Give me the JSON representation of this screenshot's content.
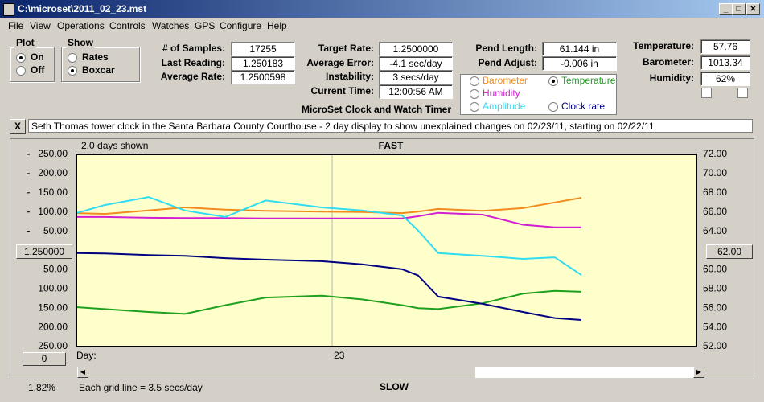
{
  "window": {
    "title": "C:\\microset\\2011_02_23.mst"
  },
  "menu": [
    "File",
    "View",
    "Operations",
    "Controls",
    "Watches",
    "GPS",
    "Configure",
    "Help"
  ],
  "plot_group": {
    "title": "Plot",
    "options": [
      "On",
      "Off"
    ],
    "selected": 0
  },
  "show_group": {
    "title": "Show",
    "options": [
      "Rates",
      "Boxcar"
    ],
    "selected": 1
  },
  "stats": [
    {
      "label": "# of Samples:",
      "value": "17255"
    },
    {
      "label": "Last Reading:",
      "value": "1.250183"
    },
    {
      "label": "Average Rate:",
      "value": "1.2500598"
    }
  ],
  "targets": [
    {
      "label": "Target Rate:",
      "value": "1.2500000"
    },
    {
      "label": "Average Error:",
      "value": "-4.1 sec/day"
    },
    {
      "label": "Instability:",
      "value": "3 secs/day"
    },
    {
      "label": "Current Time:",
      "value": "12:00:56 AM"
    }
  ],
  "pendulum": [
    {
      "label": "Pend Length:",
      "value": "61.144 in"
    },
    {
      "label": "Pend Adjust:",
      "value": "-0.006 in"
    }
  ],
  "environment": [
    {
      "label": "Temperature:",
      "value": "57.76"
    },
    {
      "label": "Barometer:",
      "value": "1013.34"
    },
    {
      "label": "Humidity:",
      "value": "62%"
    }
  ],
  "checkboxes": [
    false,
    false
  ],
  "app_name": "MicroSet Clock and Watch Timer",
  "selected_series": 1,
  "close_button": "X",
  "description": "Seth Thomas tower clock in the Santa Barbara County Courthouse - 2 day display to show unexplained changes on 02/23/11, starting on 02/22/11",
  "center_buttons": {
    "left": "1.250000",
    "right": "62.00"
  },
  "status": {
    "scale_button": "0",
    "percent": "1.82%",
    "grid_note": "Each grid line = 3.5 secs/day"
  },
  "chart_data": {
    "type": "line",
    "span_label": "2.0 days shown",
    "top_label": "FAST",
    "bottom_label": "SLOW",
    "x_label": "Day:",
    "x": [
      22.175,
      22.266,
      22.408,
      22.525,
      22.655,
      22.785,
      22.966,
      23.096,
      23.226,
      23.277,
      23.342,
      23.485,
      23.615,
      23.718,
      23.804
    ],
    "xlim": [
      22.175,
      24.175
    ],
    "xticks": [
      23
    ],
    "ylim": [
      -250,
      250
    ],
    "yticks": [
      {
        "value": 250,
        "label": "250.00"
      },
      {
        "value": 200,
        "label": "200.00"
      },
      {
        "value": 150,
        "label": "150.00"
      },
      {
        "value": 100,
        "label": "100.00"
      },
      {
        "value": 50,
        "label": "50.00"
      },
      {
        "value": -50,
        "label": "50.00"
      },
      {
        "value": -100,
        "label": "100.00"
      },
      {
        "value": -150,
        "label": "150.00"
      },
      {
        "value": -200,
        "label": "200.00"
      },
      {
        "value": -250,
        "label": "250.00"
      }
    ],
    "y2lim": [
      52,
      72
    ],
    "y2ticks": [
      {
        "value": 72,
        "label": "72.00"
      },
      {
        "value": 70,
        "label": "70.00"
      },
      {
        "value": 68,
        "label": "68.00"
      },
      {
        "value": 66,
        "label": "66.00"
      },
      {
        "value": 64,
        "label": "64.00"
      },
      {
        "value": 60,
        "label": "60.00"
      },
      {
        "value": 58,
        "label": "58.00"
      },
      {
        "value": 56,
        "label": "56.00"
      },
      {
        "value": 54,
        "label": "54.00"
      },
      {
        "value": 52,
        "label": "52.00"
      }
    ],
    "grid": "vertical",
    "series": [
      {
        "name": "Barometer",
        "color": "#f08c1e",
        "values": [
          97,
          95,
          104,
          112,
          106,
          103,
          101,
          100,
          97,
          101,
          108,
          103,
          110,
          125,
          137
        ]
      },
      {
        "name": "Temperature",
        "color": "#1ea01e",
        "axis": "y2",
        "values": [
          56.1,
          55.9,
          55.6,
          55.4,
          56.3,
          57.1,
          57.3,
          56.9,
          56.3,
          56.0,
          55.9,
          56.5,
          57.5,
          57.8,
          57.7
        ]
      },
      {
        "name": "Humidity",
        "color": "#d21ed2",
        "values": [
          87,
          87,
          85,
          84,
          84,
          83,
          83,
          83,
          83,
          89,
          98,
          93,
          67,
          60,
          60
        ]
      },
      {
        "name": "Amplitude",
        "color": "#32dcf0",
        "values": [
          97,
          118,
          139,
          104,
          87,
          130,
          112,
          104,
          91,
          52,
          -7,
          -14,
          -22,
          -18,
          -64
        ]
      },
      {
        "name": "Clock rate",
        "color": "#000080",
        "values": [
          -7,
          -8,
          -12,
          -14,
          -20,
          -24,
          -28,
          -36,
          -49,
          -65,
          -120,
          -139,
          -160,
          -176,
          -181
        ]
      }
    ]
  }
}
